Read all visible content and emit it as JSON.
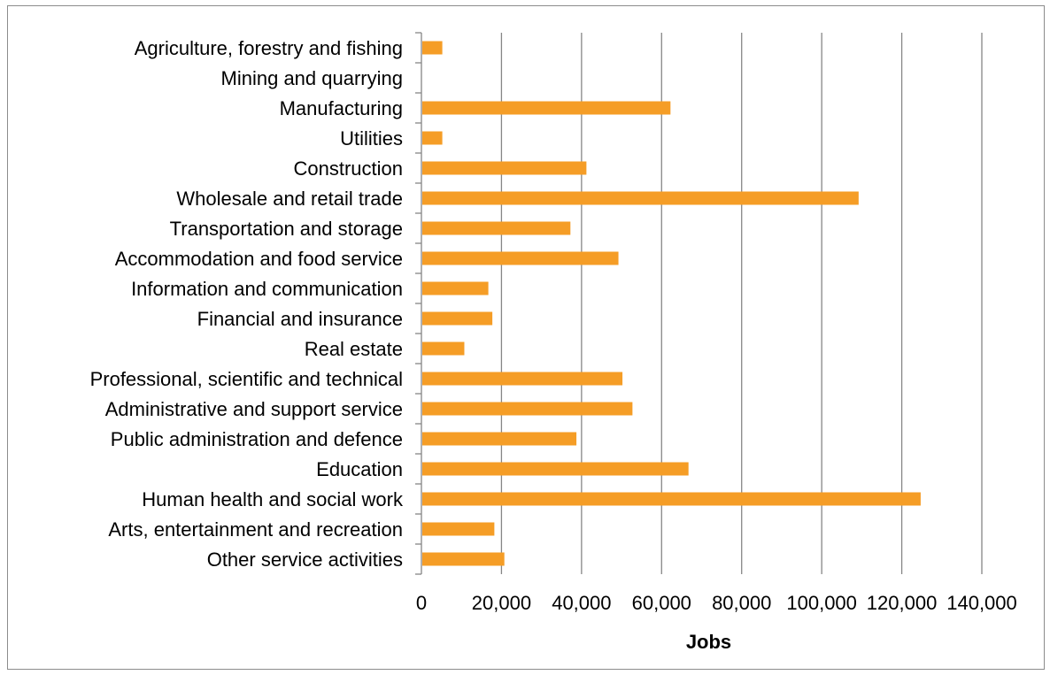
{
  "chart_data": {
    "type": "bar",
    "orientation": "horizontal",
    "categories": [
      "Agriculture, forestry and fishing",
      "Mining and quarrying",
      "Manufacturing",
      "Utilities",
      "Construction",
      "Wholesale and retail trade",
      "Transportation and storage",
      "Accommodation and food service",
      "Information and communication",
      "Financial and insurance",
      "Real estate",
      "Professional, scientific and technical",
      "Administrative and support service",
      "Public administration and defence",
      "Education",
      "Human health and social work",
      "Arts, entertainment and recreation",
      "Other service activities"
    ],
    "values": [
      5000,
      0,
      62000,
      5000,
      41000,
      109000,
      37000,
      49000,
      16500,
      17500,
      10500,
      50000,
      52500,
      38500,
      66500,
      124500,
      18000,
      20500
    ],
    "xlabel": "Jobs",
    "xlim": [
      0,
      140000
    ],
    "xticks": [
      0,
      20000,
      40000,
      60000,
      80000,
      100000,
      120000,
      140000
    ],
    "xtick_labels": [
      "0",
      "20,000",
      "40,000",
      "60,000",
      "80,000",
      "100,000",
      "120,000",
      "140,000"
    ],
    "grid": "vertical",
    "bar_color": "#F59D26",
    "gridline_color": "#868686"
  }
}
